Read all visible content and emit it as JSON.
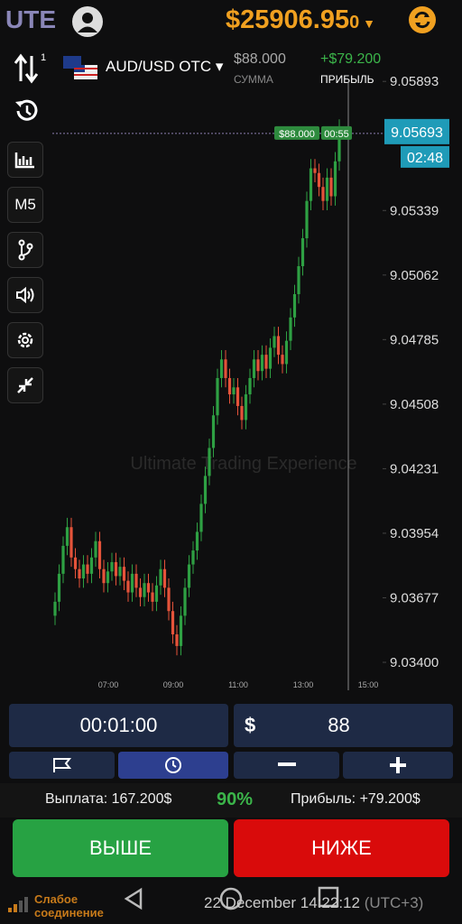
{
  "header": {
    "logo": "UTE",
    "balance": "$25906.95",
    "balance_tail": "0"
  },
  "asset": {
    "name": "AUD/USD OTC",
    "amount": "$88.000",
    "amount_label": "СУММА",
    "profit": "+$79.200",
    "profit_label": "ПРИБЫЛЬ"
  },
  "sidebar": {
    "badge": "1",
    "timeframe": "M5"
  },
  "chart": {
    "type": "candlestick",
    "watermark": "Ultimate Trading Experience",
    "ylim": [
      9.0328,
      9.0601
    ],
    "yticks": [
      {
        "value": 9.034,
        "label": "9.03400"
      },
      9.03677,
      9.03954,
      9.04231,
      9.04508,
      9.04785,
      9.05062,
      9.05339,
      9.05893
    ],
    "xticks": [
      "07:00",
      "09:00",
      "11:00",
      "13:00",
      "15:00"
    ],
    "current_price": {
      "value": 9.05693,
      "label": "9.05693"
    },
    "timer": "02:48",
    "deal_amount": "$88.000",
    "deal_time": "00:55",
    "up_color": "#2ea043",
    "down_color": "#e5533a",
    "candles": [
      [
        9.036,
        9.037,
        9.0356,
        9.0366
      ],
      [
        9.0366,
        9.0382,
        9.0362,
        9.0378
      ],
      [
        9.0378,
        9.0394,
        9.0374,
        9.039
      ],
      [
        9.039,
        9.0402,
        9.0386,
        9.0398
      ],
      [
        9.0398,
        9.0402,
        9.0381,
        9.0385
      ],
      [
        9.0385,
        9.0389,
        9.0376,
        9.038
      ],
      [
        9.038,
        9.0384,
        9.0372,
        9.0376
      ],
      [
        9.0376,
        9.0386,
        9.0372,
        9.0382
      ],
      [
        9.0382,
        9.0386,
        9.0374,
        9.0378
      ],
      [
        9.0378,
        9.0389,
        9.0374,
        9.0385
      ],
      [
        9.0385,
        9.0396,
        9.0381,
        9.0392
      ],
      [
        9.0392,
        9.0396,
        9.0376,
        9.038
      ],
      [
        9.038,
        9.0384,
        9.037,
        9.0374
      ],
      [
        9.0374,
        9.0383,
        9.037,
        9.0379
      ],
      [
        9.0379,
        9.0387,
        9.0375,
        9.0383
      ],
      [
        9.0383,
        9.0387,
        9.0373,
        9.0377
      ],
      [
        9.0377,
        9.0385,
        9.0373,
        9.0381
      ],
      [
        9.0381,
        9.0385,
        9.0371,
        9.0375
      ],
      [
        9.0375,
        9.0379,
        9.0366,
        9.037
      ],
      [
        9.037,
        9.0382,
        9.0366,
        9.0378
      ],
      [
        9.0378,
        9.0382,
        9.0368,
        9.0372
      ],
      [
        9.0372,
        9.0376,
        9.0364,
        9.0368
      ],
      [
        9.0368,
        9.0378,
        9.0364,
        9.0374
      ],
      [
        9.0374,
        9.0378,
        9.0366,
        9.037
      ],
      [
        9.037,
        9.0374,
        9.0362,
        9.0366
      ],
      [
        9.0366,
        9.0377,
        9.0362,
        9.0373
      ],
      [
        9.0373,
        9.0384,
        9.0369,
        9.038
      ],
      [
        9.038,
        9.0384,
        9.0368,
        9.0372
      ],
      [
        9.0372,
        9.0376,
        9.0358,
        9.0362
      ],
      [
        9.0362,
        9.0366,
        9.0348,
        9.0352
      ],
      [
        9.0352,
        9.0356,
        9.0343,
        9.0347
      ],
      [
        9.0347,
        9.0364,
        9.0343,
        9.036
      ],
      [
        9.036,
        9.0376,
        9.0356,
        9.0372
      ],
      [
        9.0372,
        9.0386,
        9.0368,
        9.0382
      ],
      [
        9.0382,
        9.0392,
        9.0378,
        9.0388
      ],
      [
        9.0388,
        9.04,
        9.0384,
        9.0396
      ],
      [
        9.0396,
        9.0412,
        9.0392,
        9.0408
      ],
      [
        9.0408,
        9.0424,
        9.0404,
        9.042
      ],
      [
        9.042,
        9.0436,
        9.0416,
        9.0432
      ],
      [
        9.0432,
        9.045,
        9.0428,
        9.0446
      ],
      [
        9.0446,
        9.0466,
        9.0442,
        9.0462
      ],
      [
        9.0462,
        9.0474,
        9.0458,
        9.047
      ],
      [
        9.047,
        9.0474,
        9.0458,
        9.0462
      ],
      [
        9.0462,
        9.0466,
        9.0451,
        9.0455
      ],
      [
        9.0455,
        9.0462,
        9.0451,
        9.0458
      ],
      [
        9.0458,
        9.0462,
        9.0446,
        9.045
      ],
      [
        9.045,
        9.0454,
        9.044,
        9.0444
      ],
      [
        9.0444,
        9.0459,
        9.044,
        9.0455
      ],
      [
        9.0455,
        9.0466,
        9.0451,
        9.0462
      ],
      [
        9.0462,
        9.0474,
        9.0458,
        9.047
      ],
      [
        9.047,
        9.0474,
        9.0461,
        9.0465
      ],
      [
        9.0465,
        9.0476,
        9.0461,
        9.0472
      ],
      [
        9.0472,
        9.0476,
        9.0462,
        9.0466
      ],
      [
        9.0466,
        9.0479,
        9.0462,
        9.0475
      ],
      [
        9.0475,
        9.0484,
        9.0471,
        9.048
      ],
      [
        9.048,
        9.0484,
        9.0468,
        9.0472
      ],
      [
        9.0472,
        9.0476,
        9.0464,
        9.0468
      ],
      [
        9.0468,
        9.0482,
        9.0464,
        9.0478
      ],
      [
        9.0478,
        9.0492,
        9.0474,
        9.0488
      ],
      [
        9.0488,
        9.0502,
        9.0484,
        9.0498
      ],
      [
        9.0498,
        9.0514,
        9.0494,
        9.051
      ],
      [
        9.051,
        9.0526,
        9.0506,
        9.0522
      ],
      [
        9.0522,
        9.0542,
        9.0518,
        9.0538
      ],
      [
        9.0538,
        9.0556,
        9.0534,
        9.0552
      ],
      [
        9.0552,
        9.0556,
        9.0546,
        9.055
      ],
      [
        9.055,
        9.0554,
        9.054,
        9.0544
      ],
      [
        9.0544,
        9.0548,
        9.0534,
        9.0538
      ],
      [
        9.0538,
        9.0552,
        9.0534,
        9.0548
      ],
      [
        9.0548,
        9.0552,
        9.0536,
        9.054
      ],
      [
        9.054,
        9.0559,
        9.0536,
        9.0555
      ],
      [
        9.0555,
        9.0573,
        9.0551,
        9.0569
      ]
    ]
  },
  "controls": {
    "time": "00:01:00",
    "currency": "$",
    "amount": "88",
    "payout": "Выплата: 167.200$",
    "percent": "90%",
    "profit": "Прибыль: +79.200$",
    "up": "ВЫШЕ",
    "down": "НИЖЕ"
  },
  "status": {
    "connection": "Слабое соединение",
    "datetime": "22 December 14:22:12",
    "timezone": "(UTC+3)"
  }
}
